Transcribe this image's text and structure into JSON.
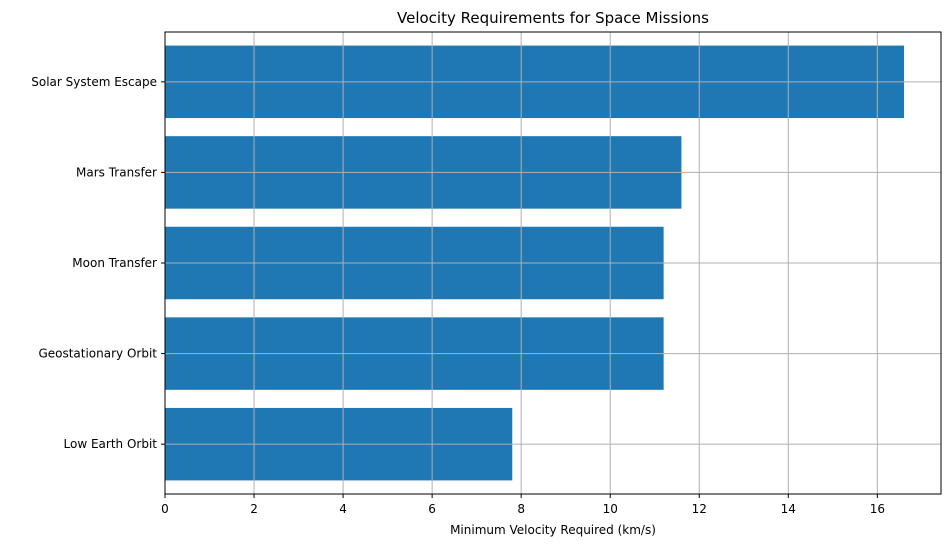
{
  "chart_data": {
    "type": "bar",
    "orientation": "horizontal",
    "title": "Velocity Requirements for Space Missions",
    "xlabel": "Minimum Velocity Required (km/s)",
    "ylabel": "",
    "categories": [
      "Low Earth Orbit",
      "Geostationary Orbit",
      "Moon Transfer",
      "Mars Transfer",
      "Solar System Escape"
    ],
    "values": [
      7.8,
      11.2,
      11.2,
      11.6,
      16.6
    ],
    "xlim": [
      0,
      17.43
    ],
    "xticks": [
      0,
      2,
      4,
      6,
      8,
      10,
      12,
      14,
      16
    ],
    "xtick_labels": [
      "0",
      "2",
      "4",
      "6",
      "8",
      "10",
      "12",
      "14",
      "16"
    ],
    "grid": true,
    "bar_color": "#1f77b4",
    "grid_color": "#b0b0b0"
  }
}
